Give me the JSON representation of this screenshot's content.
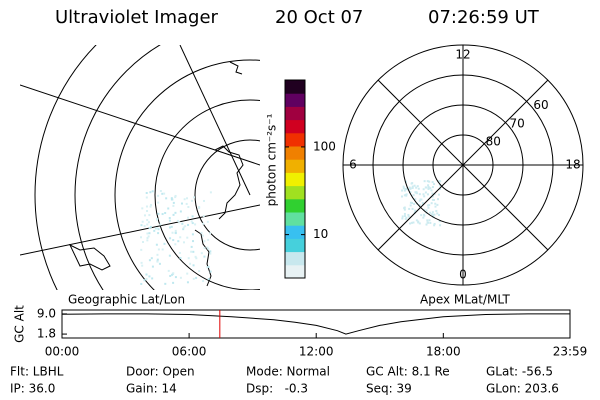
{
  "header": {
    "instrument": "Ultraviolet Imager",
    "date": "20 Oct 07",
    "time": "07:26:59 UT"
  },
  "colorbar": {
    "label": "photon cm⁻²s⁻¹",
    "log": true,
    "clim": [
      3.2,
      580
    ],
    "ticks": [
      10,
      100
    ]
  },
  "polar": {
    "rlim": [
      90,
      50
    ],
    "lat_rings": [
      80,
      70,
      60
    ],
    "mlt_labels": [
      12,
      6,
      0,
      18
    ]
  },
  "panel_labels": {
    "left": "Geographic Lat/Lon",
    "right": "Apex MLat/MLT"
  },
  "altitude": {
    "ylabel": "GC Alt",
    "ylim": [
      0.4,
      10.4
    ],
    "yticks": [
      {
        "value": 9,
        "label": "9.0"
      },
      1.8
    ],
    "xlim": [
      0,
      23.98
    ],
    "xticks": [
      {
        "value": 0,
        "label": "00:00"
      },
      {
        "value": 6,
        "label": "06:00"
      },
      {
        "value": 12,
        "label": "12:00"
      },
      {
        "value": 18,
        "label": "18:00"
      },
      {
        "value": 23.98,
        "label": "23:59"
      }
    ],
    "x": [
      0,
      2,
      4,
      6,
      8,
      10,
      11,
      12,
      13,
      13.4,
      14,
      15,
      16,
      18,
      20,
      22,
      23.98
    ],
    "values": [
      8.9,
      9.0,
      9.0,
      8.8,
      8.0,
      6.9,
      6.0,
      4.9,
      3.0,
      1.8,
      3.0,
      4.9,
      6.2,
      8.0,
      8.8,
      9.0,
      9.0
    ],
    "line_color": "#000000",
    "marker_hour": 7.45,
    "marker_color": "#e00000"
  },
  "info": [
    [
      "Flt: LBHL",
      "Door: Open",
      "Mode: Normal",
      "GC Alt: 8.1 Re",
      "GLat: -56.5"
    ],
    [
      "IP: 36.0",
      "Gain: 14",
      "Dsp:   -0.3",
      "Seq: 39",
      "GLon: 203.6"
    ]
  ]
}
